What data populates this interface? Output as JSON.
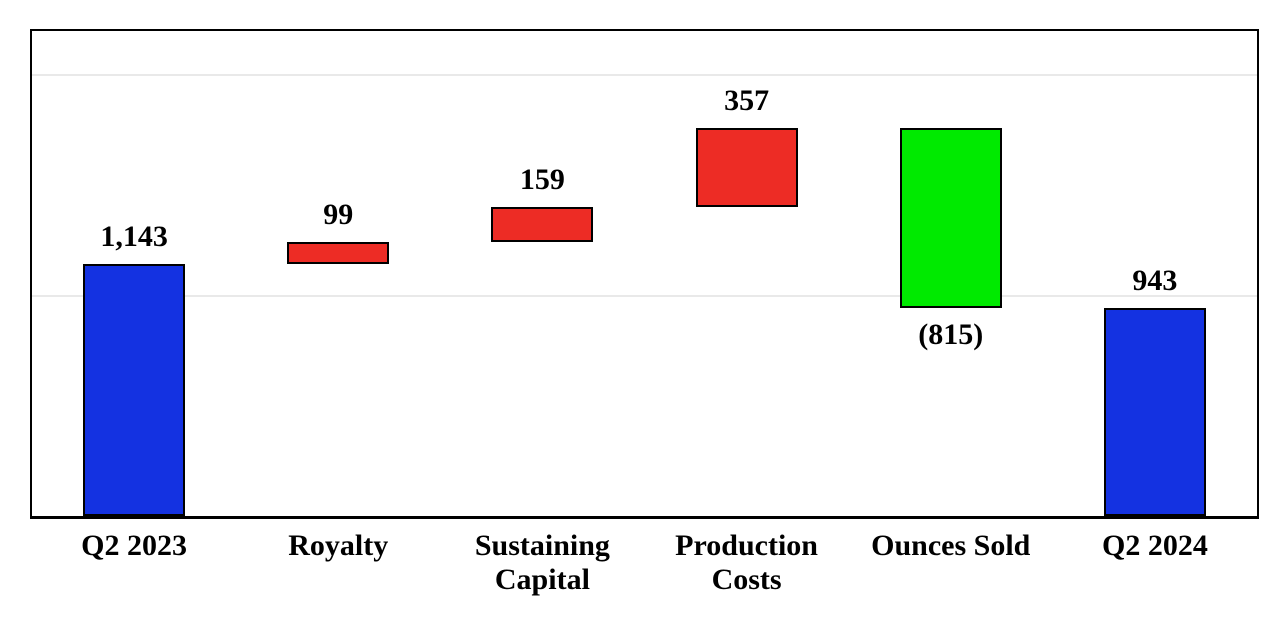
{
  "chart_data": {
    "type": "bar",
    "subtype": "waterfall",
    "title": "",
    "xlabel": "",
    "ylabel": "",
    "categories": [
      "Q2 2023",
      "Royalty",
      "Sustaining Capital",
      "Production Costs",
      "Ounces Sold",
      "Q2 2024"
    ],
    "values": [
      1143,
      99,
      159,
      357,
      -815,
      943
    ],
    "bars": [
      {
        "category": "Q2 2023",
        "value": 1143,
        "start": 0,
        "end": 1143,
        "label": "1,143",
        "label_position": "above",
        "role": "total"
      },
      {
        "category": "Royalty",
        "value": 99,
        "start": 1143,
        "end": 1242,
        "label": "99",
        "label_position": "above",
        "role": "increase"
      },
      {
        "category": "Sustaining Capital",
        "value": 159,
        "start": 1242,
        "end": 1401,
        "label": "159",
        "label_position": "above",
        "role": "increase"
      },
      {
        "category": "Production Costs",
        "value": 357,
        "start": 1401,
        "end": 1758,
        "label": "357",
        "label_position": "above",
        "role": "increase"
      },
      {
        "category": "Ounces Sold",
        "value": -815,
        "start": 1758,
        "end": 943,
        "label": "(815)",
        "label_position": "below",
        "role": "decrease"
      },
      {
        "category": "Q2 2024",
        "value": 943,
        "start": 0,
        "end": 943,
        "label": "943",
        "label_position": "above",
        "role": "total"
      }
    ],
    "ylim": [
      0,
      2200
    ],
    "gridline_values": [
      1000,
      2000
    ],
    "grid": true,
    "legend": false,
    "colors": {
      "total": "#1432E1",
      "increase": "#ED2C25",
      "decrease": "#00EA00",
      "gridline": "#E9E9E9",
      "axis": "#000000",
      "label": "#000000"
    }
  }
}
